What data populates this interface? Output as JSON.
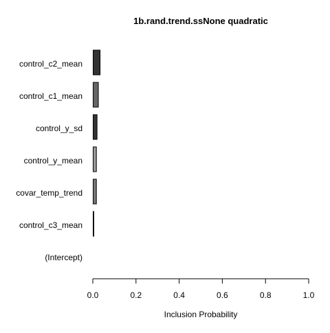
{
  "chart_data": {
    "type": "bar",
    "orientation": "horizontal",
    "title": "1b.rand.trend.ssNone quadratic",
    "xlabel": "Inclusion Probability",
    "ylabel": "",
    "xlim": [
      0,
      1
    ],
    "xticks": [
      "0.0",
      "0.2",
      "0.4",
      "0.6",
      "0.8",
      "1.0"
    ],
    "grid": false,
    "categories": [
      "control_c2_mean",
      "control_c1_mean",
      "control_y_sd",
      "control_y_mean",
      "covar_temp_trend",
      "control_c3_mean",
      "(Intercept)"
    ],
    "values": [
      0.032,
      0.024,
      0.018,
      0.015,
      0.015,
      0.003,
      0.0
    ],
    "bar_colors": [
      "#333333",
      "#666666",
      "#333333",
      "#999999",
      "#777777",
      "#000000",
      "#000000"
    ]
  }
}
